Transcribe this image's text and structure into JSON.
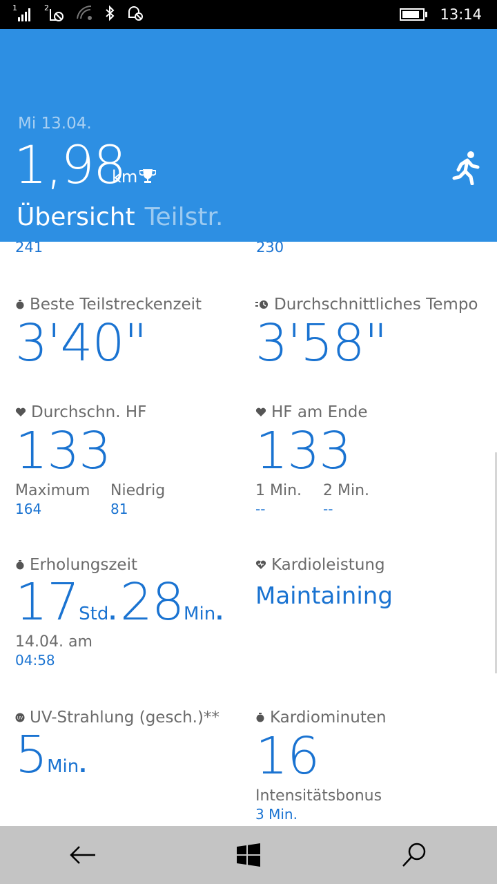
{
  "status_bar": {
    "sim1": "1",
    "sim2": "2",
    "time": "13:14",
    "battery_level": 0.85
  },
  "header": {
    "date": "Mi 13.04.",
    "distance": "1,98",
    "unit": "km",
    "tabs": [
      {
        "label": "Übersicht",
        "active": true
      },
      {
        "label": "Teilstr.",
        "active": false
      }
    ],
    "icons": [
      "trophy-icon",
      "runner-icon"
    ]
  },
  "partial_values": {
    "left": "241",
    "right": "230"
  },
  "stats": {
    "best_split": {
      "label": "Beste Teilstreckenzeit",
      "value": "3'40\""
    },
    "avg_pace": {
      "label": "Durchschnittliches Tempo",
      "value": "3'58\""
    },
    "avg_hr": {
      "label": "Durchschn. HF",
      "value": "133",
      "max_label": "Maximum",
      "max_value": "164",
      "low_label": "Niedrig",
      "low_value": "81"
    },
    "hr_end": {
      "label": "HF am Ende",
      "value": "133",
      "min1_label": "1 Min.",
      "min1_value": "--",
      "min2_label": "2 Min.",
      "min2_value": "--"
    },
    "recovery": {
      "label": "Erholungszeit",
      "hours": "17",
      "hours_unit": "Std",
      "minutes": "28",
      "minutes_unit": "Min",
      "date_label": "14.04. am",
      "time": "04:58"
    },
    "cardio": {
      "label": "Kardioleistung",
      "value": "Maintaining"
    },
    "uv": {
      "label": "UV-Strahlung (gesch.)**",
      "value": "5",
      "unit": "Min"
    },
    "cardio_minutes": {
      "label": "Kardiominuten",
      "value": "16",
      "bonus_label": "Intensitätsbonus",
      "bonus_value": "3 Min."
    }
  },
  "colors": {
    "accent": "#2d8fe3",
    "value_blue": "#1a73d1",
    "nav_bg": "#c4c4c4"
  }
}
